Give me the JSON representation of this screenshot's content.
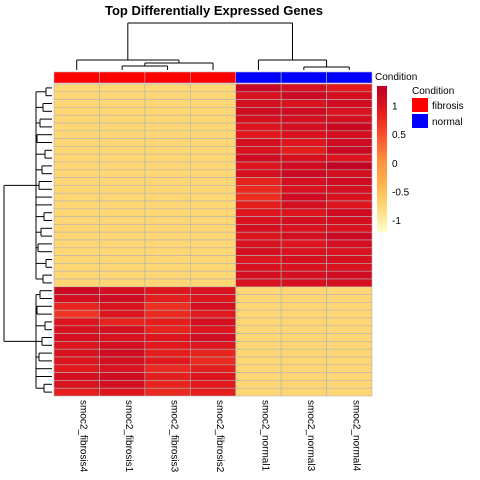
{
  "chart_data": {
    "type": "heatmap",
    "title": "Top Differentially Expressed Genes",
    "columns": [
      {
        "name": "smoc2_fibrosis4",
        "condition": "fibrosis"
      },
      {
        "name": "smoc2_fibrosis1",
        "condition": "fibrosis"
      },
      {
        "name": "smoc2_fibrosis3",
        "condition": "fibrosis"
      },
      {
        "name": "smoc2_fibrosis2",
        "condition": "fibrosis"
      },
      {
        "name": "smoc2_normal1",
        "condition": "normal"
      },
      {
        "name": "smoc2_normal3",
        "condition": "normal"
      },
      {
        "name": "smoc2_normal4",
        "condition": "normal"
      }
    ],
    "row_count": 40,
    "values": [
      [
        -0.75,
        -0.75,
        -0.75,
        -0.75,
        1.25,
        1.1,
        0.95
      ],
      [
        -0.75,
        -0.75,
        -0.75,
        -0.75,
        1.05,
        1.2,
        1.1
      ],
      [
        -0.75,
        -0.75,
        -0.75,
        -0.75,
        1.1,
        1.05,
        1.15
      ],
      [
        -0.75,
        -0.75,
        -0.75,
        -0.75,
        1.15,
        1.15,
        1.05
      ],
      [
        -0.75,
        -0.75,
        -0.75,
        -0.75,
        1.1,
        1.1,
        1.1
      ],
      [
        -0.75,
        -0.75,
        -0.75,
        -0.75,
        1.0,
        1.1,
        1.2
      ],
      [
        -0.75,
        -0.75,
        -0.75,
        -0.75,
        0.95,
        1.05,
        1.1
      ],
      [
        -0.75,
        -0.75,
        -0.75,
        -0.75,
        1.1,
        1.0,
        1.15
      ],
      [
        -0.75,
        -0.75,
        -0.75,
        -0.75,
        1.05,
        0.9,
        1.2
      ],
      [
        -0.75,
        -0.75,
        -0.75,
        -0.75,
        1.15,
        1.1,
        1.0
      ],
      [
        -0.75,
        -0.75,
        -0.75,
        -0.75,
        1.0,
        1.15,
        1.3
      ],
      [
        -0.75,
        -0.75,
        -0.75,
        -0.75,
        1.1,
        1.2,
        1.1
      ],
      [
        -0.75,
        -0.75,
        -0.75,
        -0.75,
        0.85,
        1.1,
        1.15
      ],
      [
        -0.75,
        -0.75,
        -0.75,
        -0.75,
        0.8,
        1.05,
        1.1
      ],
      [
        -0.75,
        -0.75,
        -0.75,
        -0.75,
        0.75,
        1.15,
        1.05
      ],
      [
        -0.75,
        -0.75,
        -0.75,
        -0.75,
        0.9,
        1.1,
        1.0
      ],
      [
        -0.75,
        -0.75,
        -0.75,
        -0.75,
        1.0,
        1.0,
        1.15
      ],
      [
        -0.75,
        -0.75,
        -0.75,
        -0.75,
        1.05,
        1.1,
        1.1
      ],
      [
        -0.75,
        -0.75,
        -0.75,
        -0.75,
        1.1,
        1.05,
        1.05
      ],
      [
        -0.75,
        -0.75,
        -0.75,
        -0.75,
        1.0,
        1.1,
        1.2
      ],
      [
        -0.75,
        -0.75,
        -0.75,
        -0.75,
        1.05,
        1.0,
        1.1
      ],
      [
        -0.75,
        -0.75,
        -0.75,
        -0.75,
        1.1,
        1.05,
        1.05
      ],
      [
        -0.75,
        -0.75,
        -0.75,
        -0.75,
        1.0,
        1.1,
        1.1
      ],
      [
        -0.75,
        -0.75,
        -0.75,
        -0.75,
        1.05,
        1.05,
        1.05
      ],
      [
        -0.75,
        -0.75,
        -0.75,
        -0.75,
        1.1,
        1.1,
        1.15
      ],
      [
        -0.75,
        -0.75,
        -0.75,
        -0.75,
        1.05,
        1.1,
        1.1
      ],
      [
        1.2,
        1.1,
        1.0,
        1.05,
        -0.75,
        -0.75,
        -0.75
      ],
      [
        1.1,
        1.15,
        0.9,
        1.0,
        -0.75,
        -0.75,
        -0.75
      ],
      [
        0.85,
        1.05,
        0.75,
        1.1,
        -0.75,
        -0.75,
        -0.75
      ],
      [
        0.7,
        1.0,
        0.8,
        0.95,
        -0.75,
        -0.75,
        -0.75
      ],
      [
        1.0,
        0.85,
        0.9,
        1.1,
        -0.75,
        -0.75,
        -0.75
      ],
      [
        1.05,
        1.1,
        0.85,
        1.0,
        -0.75,
        -0.75,
        -0.75
      ],
      [
        1.1,
        1.05,
        1.0,
        1.15,
        -0.75,
        -0.75,
        -0.75
      ],
      [
        1.0,
        1.1,
        0.95,
        1.0,
        -0.75,
        -0.75,
        -0.75
      ],
      [
        1.05,
        1.15,
        0.9,
        0.85,
        -0.75,
        -0.75,
        -0.75
      ],
      [
        1.0,
        1.1,
        0.95,
        0.8,
        -0.75,
        -0.75,
        -0.75
      ],
      [
        0.95,
        1.05,
        0.8,
        0.9,
        -0.75,
        -0.75,
        -0.75
      ],
      [
        1.1,
        1.15,
        0.9,
        1.0,
        -0.75,
        -0.75,
        -0.75
      ],
      [
        1.05,
        1.1,
        0.85,
        0.95,
        -0.75,
        -0.75,
        -0.75
      ],
      [
        0.9,
        1.0,
        0.8,
        0.9,
        -0.75,
        -0.75,
        -0.75
      ]
    ],
    "scale": {
      "ticks": [
        1,
        0.5,
        0,
        -0.5,
        -1
      ],
      "range": [
        -1.2,
        1.35
      ],
      "colors": [
        "#ffffcc",
        "#fed976",
        "#feb24c",
        "#fd8d3c",
        "#fc4e2a",
        "#e31a1c",
        "#bd0026"
      ]
    },
    "annotation": {
      "label": "Condition",
      "legend_title": "Condition",
      "levels": [
        {
          "name": "fibrosis",
          "color": "#ff0000"
        },
        {
          "name": "normal",
          "color": "#0000ff"
        }
      ]
    },
    "legend_position": "right"
  }
}
